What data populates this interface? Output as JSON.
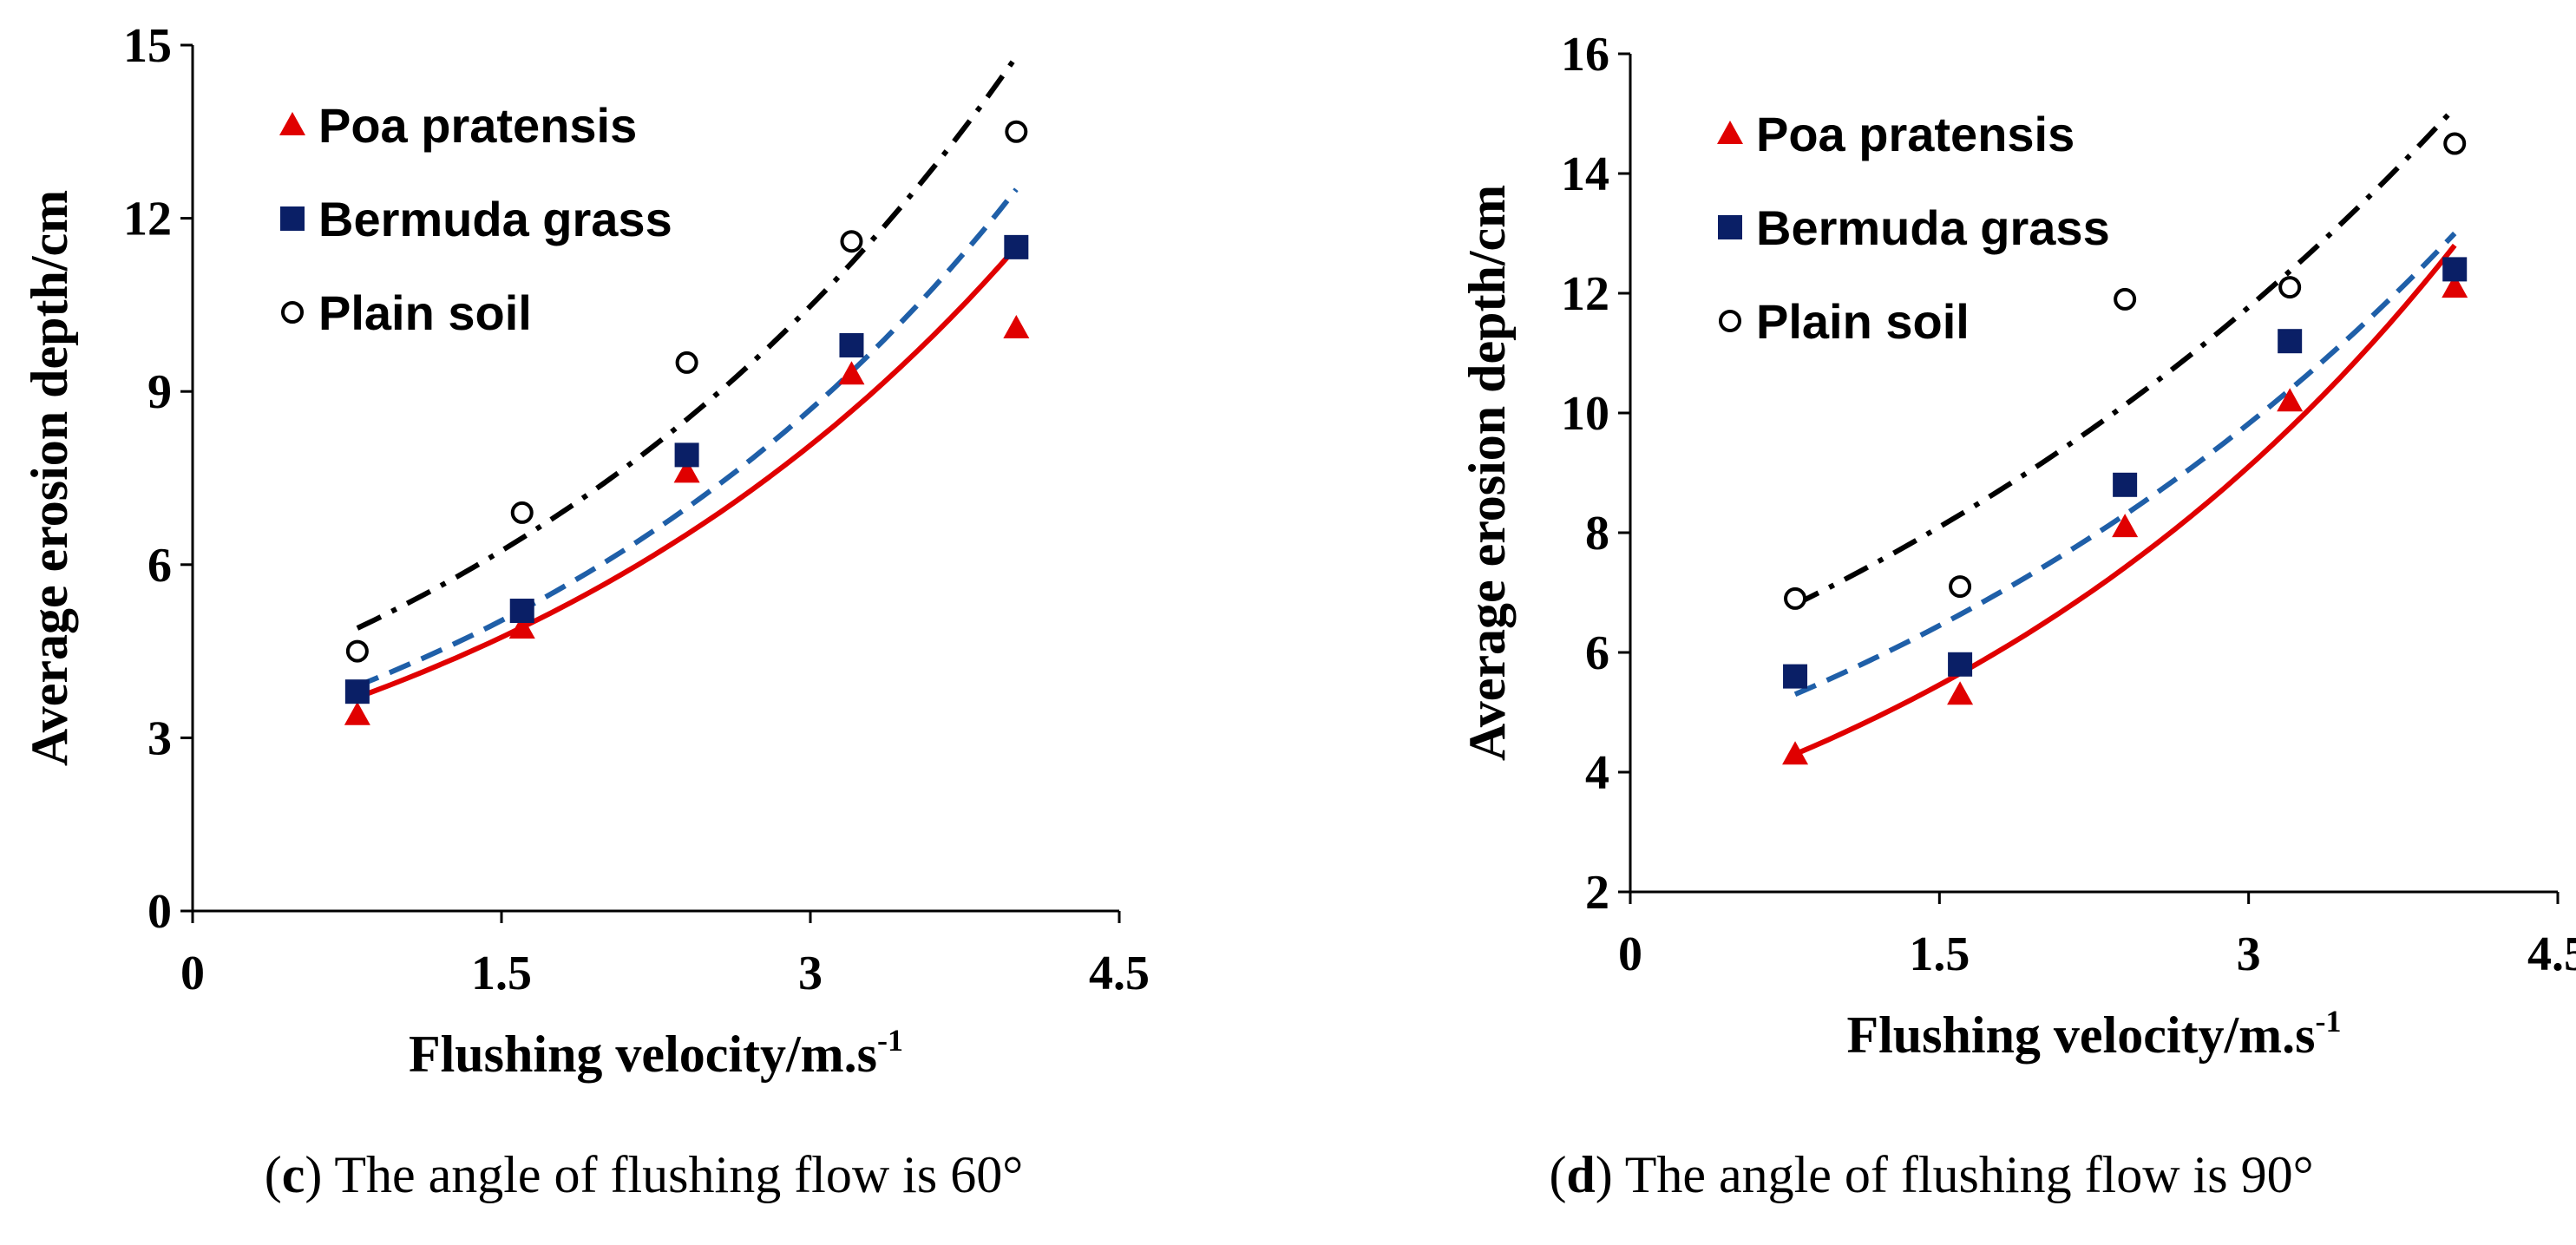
{
  "chart_data": [
    {
      "type": "scatter",
      "panel_label": "c",
      "caption": "The angle of flushing flow is 60°",
      "xlabel": "Flushing velocity/m.s",
      "xlabel_sup": "-1",
      "ylabel": "Average erosion depth/cm",
      "xlim": [
        0,
        4.5
      ],
      "ylim": [
        0,
        15
      ],
      "xticks": [
        "0",
        "1.5",
        "3",
        "4.5"
      ],
      "yticks": [
        "0",
        "3",
        "6",
        "9",
        "12",
        "15"
      ],
      "x": [
        0.8,
        1.6,
        2.4,
        3.2,
        4.0
      ],
      "legend_position": "top-left",
      "series": [
        {
          "name": "Poa pratensis",
          "marker": "triangle",
          "color": "#e00000",
          "line_style": "solid",
          "values": [
            3.4,
            4.9,
            7.6,
            9.3,
            10.1
          ],
          "trend": [
            3.7,
            11.5
          ]
        },
        {
          "name": "Bermuda grass",
          "marker": "square",
          "color": "#0a1f66",
          "line_color": "#1f5fa8",
          "line_style": "dashed",
          "values": [
            3.8,
            5.2,
            7.9,
            9.8,
            11.5
          ],
          "trend": [
            3.9,
            12.5
          ]
        },
        {
          "name": "Plain soil",
          "marker": "circle",
          "color": "#000000",
          "line_style": "dashdot",
          "values": [
            4.5,
            6.9,
            9.5,
            11.6,
            13.5
          ],
          "trend": [
            4.9,
            14.8
          ]
        }
      ]
    },
    {
      "type": "scatter",
      "panel_label": "d",
      "caption": "The angle of flushing flow is 90°",
      "xlabel": "Flushing velocity/m.s",
      "xlabel_sup": "-1",
      "ylabel": "Average erosion depth/cm",
      "xlim": [
        0,
        4.5
      ],
      "ylim": [
        2,
        16
      ],
      "xticks": [
        "0",
        "1.5",
        "3",
        "4.5"
      ],
      "yticks": [
        "2",
        "4",
        "6",
        "8",
        "10",
        "12",
        "14",
        "16"
      ],
      "x": [
        0.8,
        1.6,
        2.4,
        3.2,
        4.0
      ],
      "legend_position": "top-left",
      "series": [
        {
          "name": "Poa pratensis",
          "marker": "triangle",
          "color": "#e00000",
          "line_style": "solid",
          "values": [
            4.3,
            5.3,
            8.1,
            10.2,
            12.1
          ],
          "trend": [
            4.3,
            12.8
          ]
        },
        {
          "name": "Bermuda grass",
          "marker": "square",
          "color": "#0a1f66",
          "line_color": "#1f5fa8",
          "line_style": "dashed",
          "values": [
            5.6,
            5.8,
            8.8,
            11.2,
            12.4
          ],
          "trend": [
            5.3,
            13.0
          ]
        },
        {
          "name": "Plain soil",
          "marker": "circle",
          "color": "#000000",
          "line_style": "dashdot",
          "values": [
            6.9,
            7.1,
            11.9,
            12.1,
            14.5
          ],
          "trend": [
            6.8,
            15.1
          ]
        }
      ]
    }
  ]
}
